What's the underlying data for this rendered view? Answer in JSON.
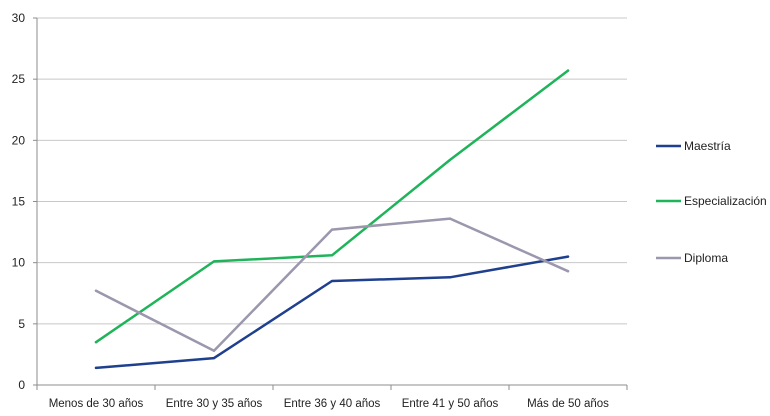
{
  "chart_data": {
    "type": "line",
    "title": "",
    "xlabel": "",
    "ylabel": "",
    "categories": [
      "Menos de 30 años",
      "Entre 30 y 35 años",
      "Entre 36 y 40 años",
      "Entre 41 y 50 años",
      "Más de 50 años"
    ],
    "ylim": [
      0,
      30
    ],
    "yticks": [
      "0",
      "5",
      "10",
      "15",
      "20",
      "25",
      "30"
    ],
    "grid": true,
    "legend_position": "right",
    "series": [
      {
        "name": "Maestría",
        "color": "#1f3f8f",
        "values": [
          1.4,
          2.2,
          8.5,
          8.8,
          10.5
        ]
      },
      {
        "name": "Especialización",
        "color": "#1fb45a",
        "values": [
          3.5,
          10.1,
          10.6,
          18.4,
          25.7
        ]
      },
      {
        "name": "Diploma",
        "color": "#9b97ad",
        "values": [
          7.7,
          2.8,
          12.7,
          13.6,
          9.3
        ]
      }
    ]
  }
}
